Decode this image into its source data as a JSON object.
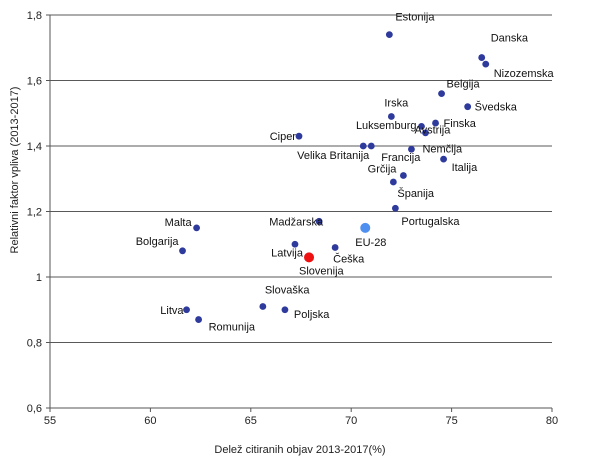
{
  "chart_data": {
    "type": "scatter",
    "xlabel": "Delež citiranih objav  2013-2017(%)",
    "ylabel": "Relativni faktor vpliva  (2013-2017)",
    "xlim": [
      55,
      80
    ],
    "ylim": [
      0.6,
      1.8
    ],
    "xticks": [
      "55",
      "60",
      "65",
      "70",
      "75",
      "80"
    ],
    "yticks": [
      "0,6",
      "0,8",
      "1",
      "1,2",
      "1,4",
      "1,6",
      "1,8"
    ],
    "grid": "horizontal",
    "colors": {
      "country": "#2e3a9c",
      "eu": "#4f8ff0",
      "slovenia": "#ee1111",
      "eu_label": "#3aa0e6",
      "slovenia_label": "#e21b1b"
    },
    "points": [
      {
        "label": "Estonija",
        "x": 71.9,
        "y": 1.74
      },
      {
        "label": "Danska",
        "x": 76.5,
        "y": 1.67
      },
      {
        "label": "Nizozemska",
        "x": 76.7,
        "y": 1.65
      },
      {
        "label": "Belgija",
        "x": 74.5,
        "y": 1.56
      },
      {
        "label": "Švedska",
        "x": 75.8,
        "y": 1.52
      },
      {
        "label": "Irska",
        "x": 72.0,
        "y": 1.49
      },
      {
        "label": "Avstrija",
        "x": 73.5,
        "y": 1.46
      },
      {
        "label": "Finska",
        "x": 74.2,
        "y": 1.47
      },
      {
        "label": "Ciper",
        "x": 67.4,
        "y": 1.43
      },
      {
        "label": "Luksemburg",
        "x": 73.7,
        "y": 1.44
      },
      {
        "label": "Velika Britanija",
        "x": 71.0,
        "y": 1.4
      },
      {
        "label": "Nemčija",
        "x": 73.0,
        "y": 1.39
      },
      {
        "label": "Francija",
        "x": 70.6,
        "y": 1.4
      },
      {
        "label": "Italija",
        "x": 74.6,
        "y": 1.36
      },
      {
        "label": "Grčija",
        "x": 72.6,
        "y": 1.31
      },
      {
        "label": "Španija",
        "x": 72.1,
        "y": 1.29
      },
      {
        "label": "Portugalska",
        "x": 72.2,
        "y": 1.21
      },
      {
        "label": "Malta",
        "x": 62.3,
        "y": 1.15
      },
      {
        "label": "Madžarska",
        "x": 68.4,
        "y": 1.17
      },
      {
        "label": "Bolgarija",
        "x": 61.6,
        "y": 1.08
      },
      {
        "label": "Latvija",
        "x": 67.2,
        "y": 1.1
      },
      {
        "label": "Češka",
        "x": 69.2,
        "y": 1.09
      },
      {
        "label": "EU-28",
        "x": 70.7,
        "y": 1.15,
        "group": "eu"
      },
      {
        "label": "Slovenija",
        "x": 67.9,
        "y": 1.06,
        "group": "slovenia"
      },
      {
        "label": "Litva",
        "x": 61.8,
        "y": 0.9
      },
      {
        "label": "Romunija",
        "x": 62.4,
        "y": 0.87
      },
      {
        "label": "Slovaška",
        "x": 65.6,
        "y": 0.91
      },
      {
        "label": "Poljska",
        "x": 66.7,
        "y": 0.9
      }
    ]
  }
}
